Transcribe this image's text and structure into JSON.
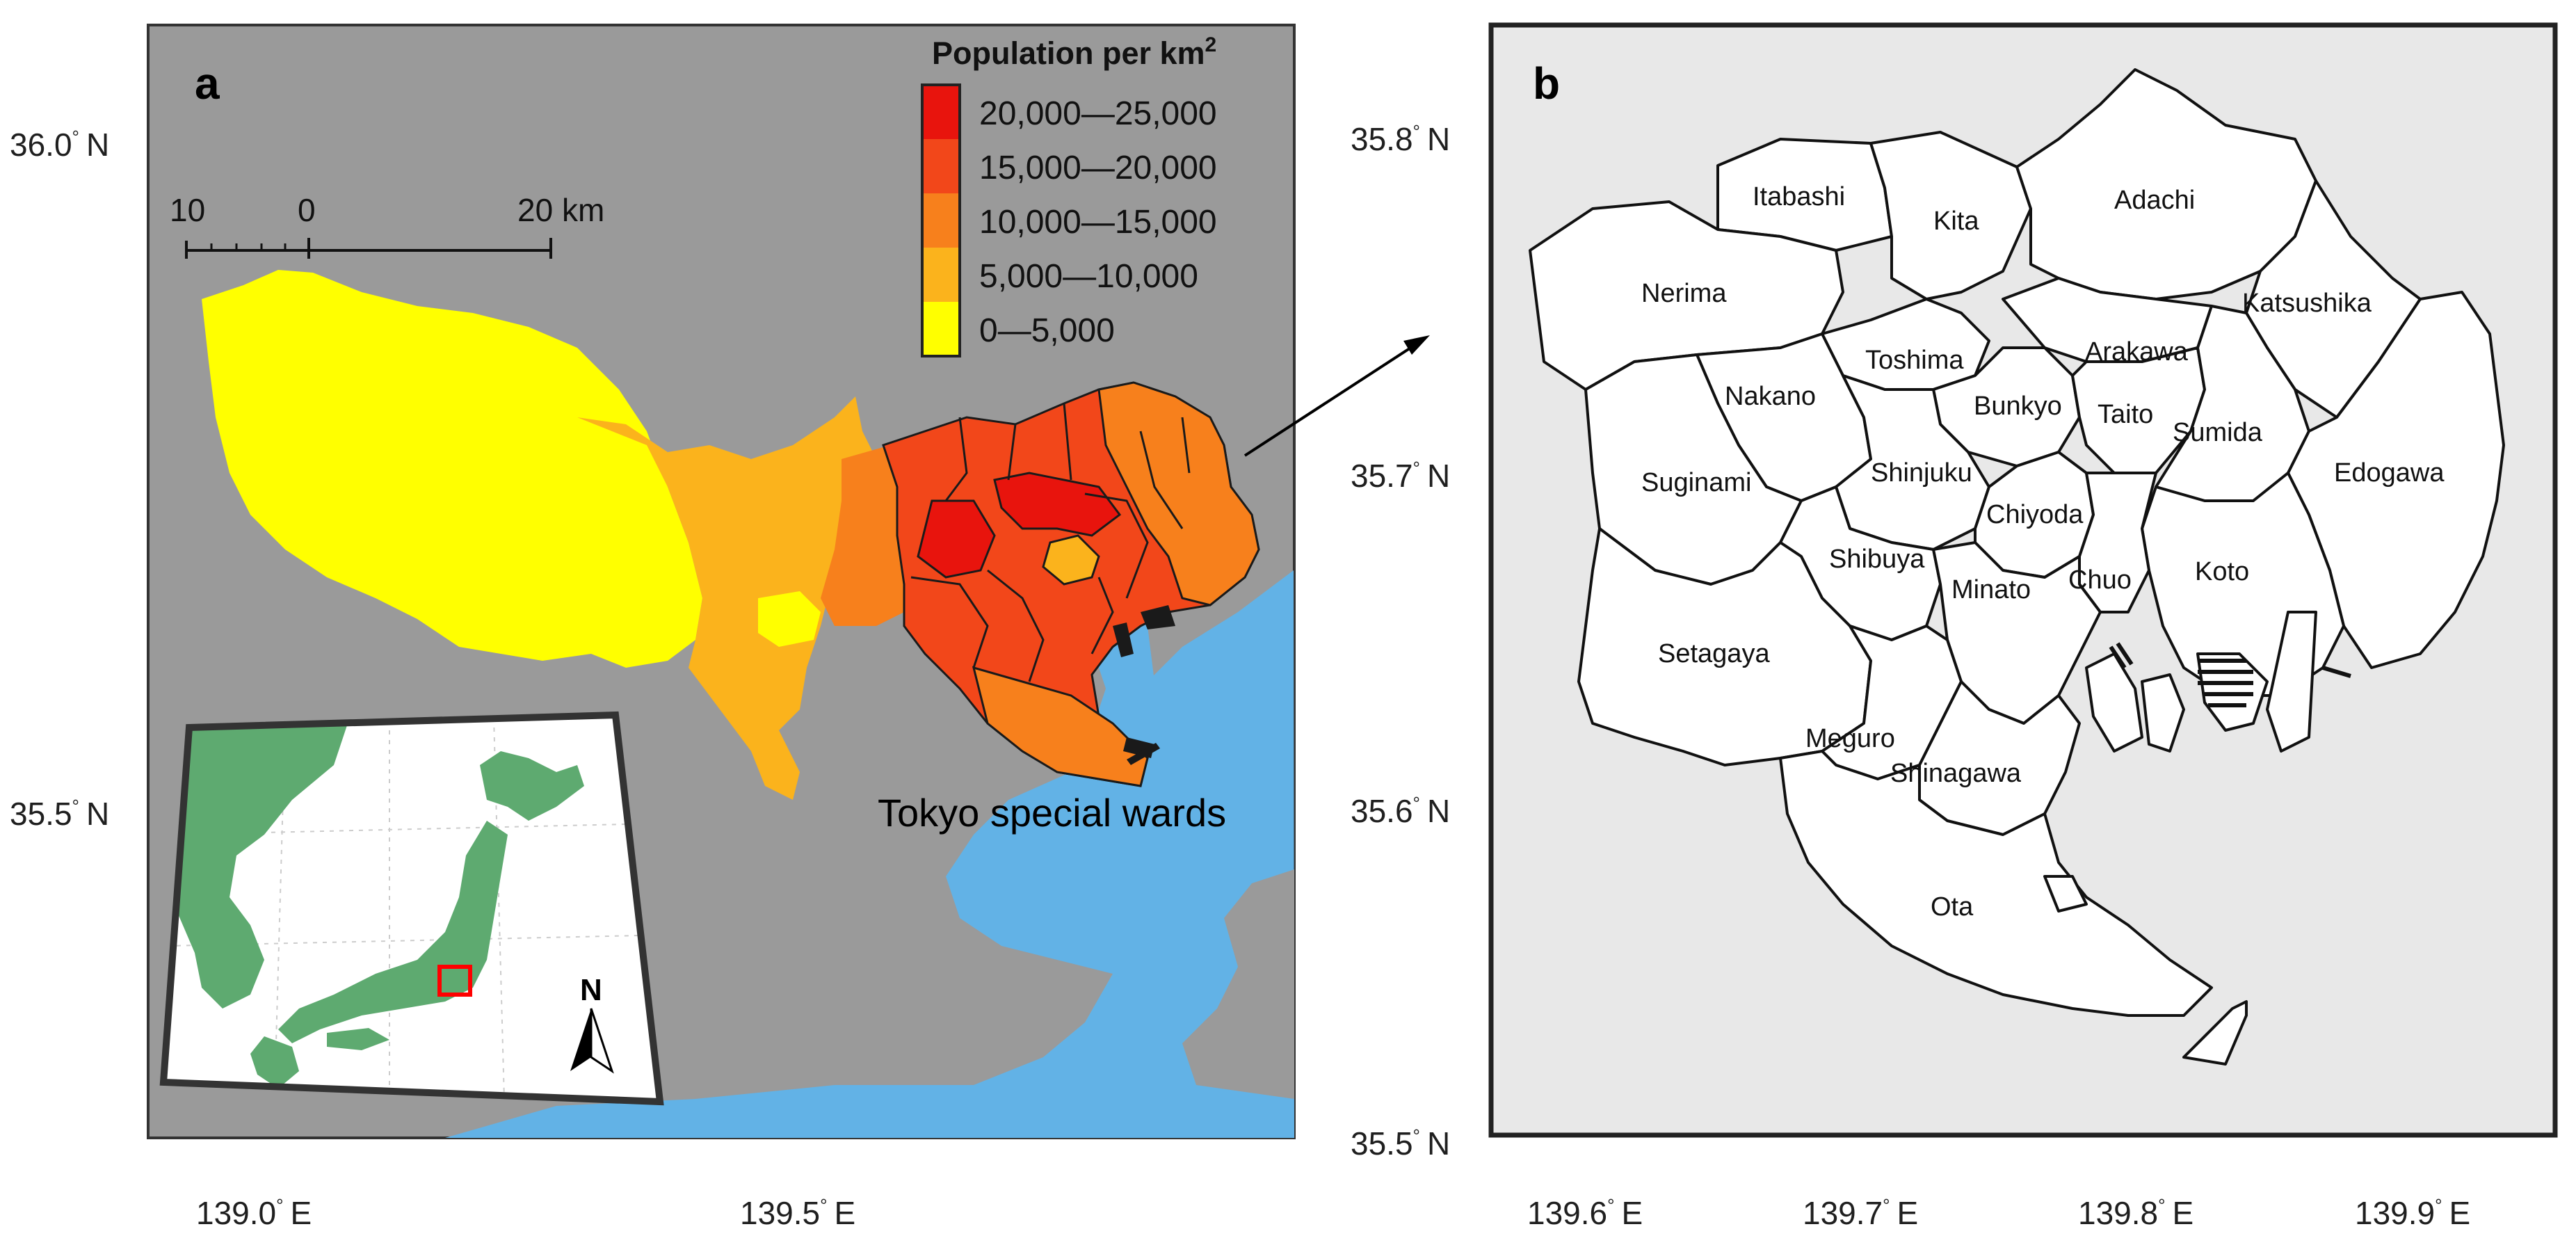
{
  "panel_a": {
    "label": "a",
    "lat_labels": [
      {
        "value": "36.0",
        "deg": "°",
        "hemi": "N"
      },
      {
        "value": "35.5",
        "deg": "°",
        "hemi": "N"
      }
    ],
    "lon_labels": [
      {
        "value": "139.0",
        "deg": "°",
        "hemi": "E"
      },
      {
        "value": "139.5",
        "deg": "°",
        "hemi": "E"
      }
    ],
    "legend": {
      "title": "Population per km",
      "title_sup": "2",
      "classes": [
        {
          "label": "20,000—25,000",
          "color": "#e8140d"
        },
        {
          "label": "15,000—20,000",
          "color": "#f2471a"
        },
        {
          "label": "10,000—15,000",
          "color": "#f7801c"
        },
        {
          "label": "5,000—10,000",
          "color": "#fbb31c"
        },
        {
          "label": "0—5,000",
          "color": "#ffff00"
        }
      ]
    },
    "scale_bar": {
      "left": "10",
      "zero": "0",
      "right": "20 km"
    },
    "callout": "Tokyo special wards",
    "inset": {
      "north_label": "N"
    }
  },
  "panel_b": {
    "label": "b",
    "lat_labels": [
      {
        "value": "35.8",
        "deg": "°",
        "hemi": "N"
      },
      {
        "value": "35.7",
        "deg": "°",
        "hemi": "N"
      },
      {
        "value": "35.6",
        "deg": "°",
        "hemi": "N"
      },
      {
        "value": "35.5",
        "deg": "°",
        "hemi": "N"
      }
    ],
    "lon_labels": [
      {
        "value": "139.6",
        "deg": "°",
        "hemi": "E"
      },
      {
        "value": "139.7",
        "deg": "°",
        "hemi": "E"
      },
      {
        "value": "139.8",
        "deg": "°",
        "hemi": "E"
      },
      {
        "value": "139.9",
        "deg": "°",
        "hemi": "E"
      }
    ],
    "wards": [
      "Itabashi",
      "Kita",
      "Adachi",
      "Nerima",
      "Katsushika",
      "Toshima",
      "Arakawa",
      "Nakano",
      "Bunkyo",
      "Taito",
      "Sumida",
      "Edogawa",
      "Suginami",
      "Shinjuku",
      "Chiyoda",
      "Shibuya",
      "Koto",
      "Chuo",
      "Minato",
      "Setagaya",
      "Meguro",
      "Shinagawa",
      "Ota"
    ]
  },
  "colors": {
    "land_background": "#9a9a9a",
    "sea": "#62b2e6",
    "inset_land": "#5eaa70",
    "inset_highlight": "#ff0000",
    "panel_b_background": "#e8e8e8"
  }
}
